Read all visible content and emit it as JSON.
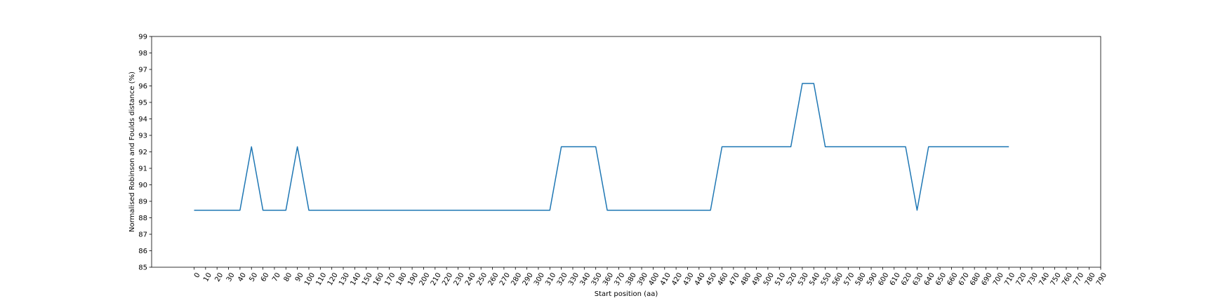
{
  "chart_data": {
    "type": "line",
    "title": "",
    "xlabel": "Start position (aa)",
    "ylabel": "Normalised Robinson and Foulds distance (%)",
    "xlim": [
      -37,
      790
    ],
    "ylim": [
      85,
      99
    ],
    "x_ticks": [
      "0",
      "10",
      "20",
      "30",
      "40",
      "50",
      "60",
      "70",
      "80",
      "90",
      "100",
      "110",
      "120",
      "130",
      "140",
      "150",
      "160",
      "170",
      "180",
      "190",
      "200",
      "210",
      "220",
      "230",
      "240",
      "250",
      "260",
      "270",
      "280",
      "290",
      "300",
      "310",
      "320",
      "330",
      "340",
      "350",
      "360",
      "370",
      "380",
      "390",
      "400",
      "410",
      "420",
      "430",
      "440",
      "450",
      "460",
      "470",
      "480",
      "490",
      "500",
      "510",
      "520",
      "530",
      "540",
      "550",
      "560",
      "570",
      "580",
      "590",
      "600",
      "610",
      "620",
      "630",
      "640",
      "650",
      "660",
      "670",
      "680",
      "690",
      "700",
      "710",
      "720",
      "730",
      "740",
      "750",
      "760",
      "770",
      "780",
      "790"
    ],
    "y_ticks": [
      "85",
      "86",
      "87",
      "88",
      "89",
      "90",
      "91",
      "92",
      "93",
      "94",
      "95",
      "96",
      "97",
      "98",
      "99"
    ],
    "grid": false,
    "line_color": "#1f77b4",
    "series": [
      {
        "x": [
          0,
          10,
          20,
          30,
          40,
          50,
          60,
          70,
          80,
          90,
          100,
          110,
          120,
          130,
          140,
          150,
          160,
          170,
          180,
          190,
          200,
          210,
          220,
          230,
          240,
          250,
          260,
          270,
          280,
          290,
          300,
          310,
          320,
          330,
          340,
          350,
          360,
          370,
          380,
          390,
          400,
          410,
          420,
          430,
          440,
          450,
          460,
          470,
          480,
          490,
          500,
          510,
          520,
          530,
          540,
          550,
          560,
          570,
          580,
          590,
          600,
          610,
          620,
          630,
          640,
          650,
          660,
          670,
          680,
          690,
          700,
          710
        ],
        "values": [
          88.46,
          88.46,
          88.46,
          88.46,
          88.46,
          92.31,
          88.46,
          88.46,
          88.46,
          92.31,
          88.46,
          88.46,
          88.46,
          88.46,
          88.46,
          88.46,
          88.46,
          88.46,
          88.46,
          88.46,
          88.46,
          88.46,
          88.46,
          88.46,
          88.46,
          88.46,
          88.46,
          88.46,
          88.46,
          88.46,
          88.46,
          88.46,
          92.31,
          92.31,
          92.31,
          92.31,
          88.46,
          88.46,
          88.46,
          88.46,
          88.46,
          88.46,
          88.46,
          88.46,
          88.46,
          88.46,
          92.31,
          92.31,
          92.31,
          92.31,
          92.31,
          92.31,
          92.31,
          96.15,
          96.15,
          92.31,
          92.31,
          92.31,
          92.31,
          92.31,
          92.31,
          92.31,
          92.31,
          88.46,
          92.31,
          92.31,
          92.31,
          92.31,
          92.31,
          92.31,
          92.31,
          92.31
        ]
      }
    ]
  }
}
